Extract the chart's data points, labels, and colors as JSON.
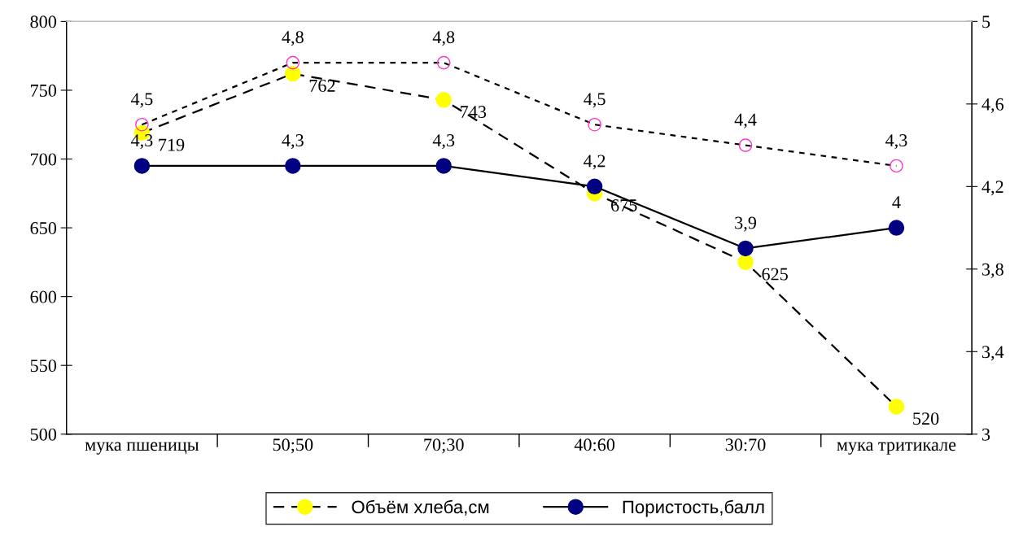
{
  "chart_data": {
    "type": "line",
    "categories": [
      "мука пшеницы",
      "50;50",
      "70;30",
      "40:60",
      "30:70",
      "мука тритикале"
    ],
    "series": [
      {
        "name": "Объём хлеба,см",
        "color": "#ffff00",
        "line_style": "dashed",
        "marker": "circle",
        "values": [
          719,
          762,
          743,
          675,
          625,
          520
        ],
        "value_labels": [
          "719",
          "762",
          "743",
          "675",
          "625",
          "520"
        ]
      },
      {
        "name": "Пористость,балл",
        "color": "#000080",
        "line_style": "solid",
        "marker": "circle",
        "axis": "y2",
        "values": [
          4.3,
          4.3,
          4.3,
          4.2,
          3.9,
          4
        ],
        "value_labels": [
          "4,3",
          "4,3",
          "4,3",
          "4,2",
          "3,9",
          "4"
        ]
      },
      {
        "color": "#ff33cc",
        "line_style": "dotted",
        "marker": "circle",
        "axis": "y2",
        "values": [
          4.5,
          4.8,
          4.8,
          4.5,
          4.4,
          4.3
        ],
        "value_labels": [
          "4,5",
          "4,8",
          "4,8",
          "4,5",
          "4,4",
          "4,3"
        ]
      }
    ],
    "ylim": [
      500,
      800
    ],
    "yticks": [
      500,
      550,
      600,
      650,
      700,
      750,
      800
    ],
    "y2lim": [
      3,
      5
    ],
    "y2ticks": [
      3,
      {
        "value": 3.4,
        "label": "3,4"
      },
      {
        "value": 3.8,
        "label": "3,8"
      },
      {
        "value": 4.2,
        "label": "4,2"
      },
      {
        "value": 4.6,
        "label": "4,6"
      },
      5
    ],
    "grid": false,
    "legend": "bottom"
  }
}
